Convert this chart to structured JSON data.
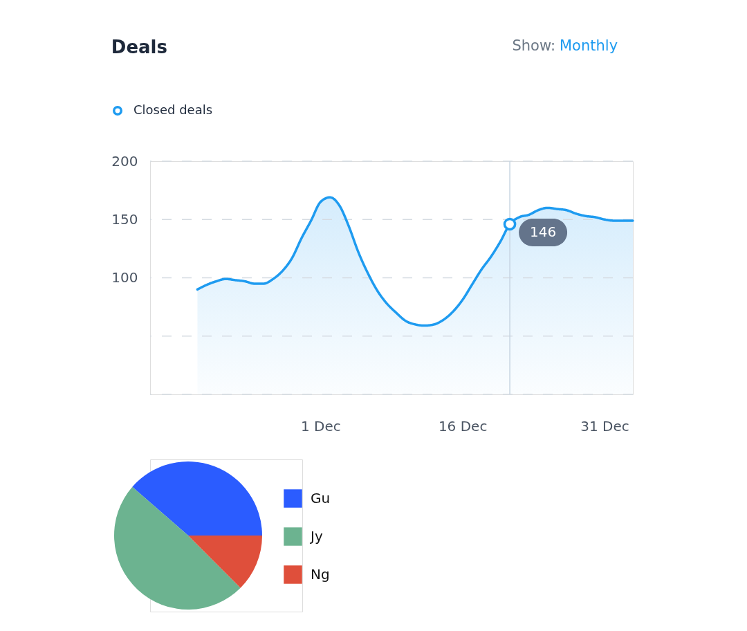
{
  "chart_data": [
    {
      "type": "area",
      "title": "Deals",
      "annotations": [
        "Show:",
        "Monthly"
      ],
      "categories": [
        null,
        null,
        null,
        null,
        null,
        null,
        null,
        null,
        null,
        null,
        null,
        null,
        null,
        null,
        null,
        null,
        null,
        null,
        "1 Dec",
        null,
        null,
        null,
        null,
        null,
        null,
        null,
        null,
        null,
        null,
        null,
        null,
        null,
        null,
        "16 Dec",
        null,
        null,
        null,
        null,
        null,
        null,
        null,
        null,
        null,
        null,
        null,
        null,
        null,
        null,
        "31 Dec",
        null,
        null,
        null
      ],
      "series": [
        {
          "name": "Closed deals",
          "color": "#1e9bf0",
          "values": [
            null,
            null,
            null,
            null,
            null,
            90,
            94,
            97,
            99,
            98,
            97,
            95,
            95,
            99,
            106,
            117,
            134,
            149,
            165,
            169,
            162,
            144,
            122,
            104,
            89,
            78,
            70,
            63,
            60,
            59,
            60,
            64,
            71,
            81,
            94,
            107,
            118,
            131,
            146,
            152,
            154,
            158,
            160,
            159,
            158,
            155,
            153,
            152,
            150,
            149,
            149,
            149
          ]
        },
        {
          "type": "scatter",
          "color": "#1e9bf0",
          "marker": "circle",
          "values": [
            null,
            null,
            null,
            null,
            null,
            null,
            null,
            null,
            null,
            null,
            null,
            null,
            null,
            null,
            null,
            null,
            null,
            null,
            null,
            null,
            null,
            null,
            null,
            null,
            null,
            null,
            null,
            null,
            null,
            null,
            null,
            null,
            null,
            null,
            null,
            null,
            null,
            null,
            146,
            null,
            null,
            null,
            null,
            null,
            null,
            null,
            null,
            null,
            null,
            null,
            null,
            null
          ],
          "value_labels": [
            null,
            null,
            null,
            null,
            null,
            null,
            null,
            null,
            null,
            null,
            null,
            null,
            null,
            null,
            null,
            null,
            null,
            null,
            null,
            null,
            null,
            null,
            null,
            null,
            null,
            null,
            null,
            null,
            null,
            null,
            null,
            null,
            null,
            null,
            null,
            null,
            null,
            null,
            "146",
            null,
            null,
            null,
            null,
            null,
            null,
            null,
            null,
            null,
            null,
            null,
            null,
            null
          ]
        }
      ],
      "ylim": [
        0,
        200
      ],
      "yticks": [
        {
          "value": 0,
          "label": null
        },
        {
          "value": 50,
          "label": null
        },
        100,
        150,
        200
      ],
      "grid": "y",
      "legend": "top left"
    },
    {
      "type": "pie",
      "categories": [
        "Gu",
        "Jy",
        "Ng"
      ],
      "values": [
        38.6,
        48.9,
        12.5
      ],
      "colors": [
        "#2b5cff",
        "#6cb390",
        "#df4f3b"
      ],
      "legend": "right"
    }
  ]
}
